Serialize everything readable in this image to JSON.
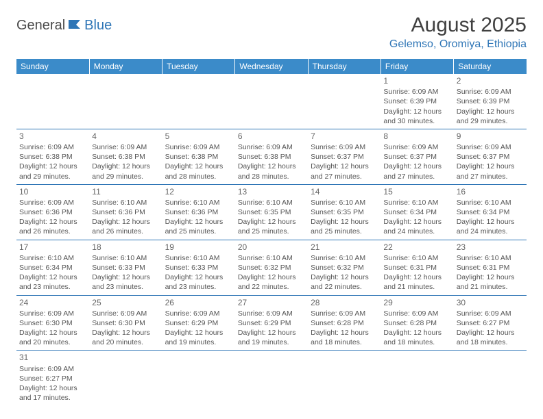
{
  "logo": {
    "text1": "General",
    "text2": "Blue"
  },
  "title": "August 2025",
  "location": "Gelemso, Oromiya, Ethiopia",
  "weekdays": [
    "Sunday",
    "Monday",
    "Tuesday",
    "Wednesday",
    "Thursday",
    "Friday",
    "Saturday"
  ],
  "colors": {
    "header_bg": "#3b8bc9",
    "header_text": "#ffffff",
    "accent": "#2e75b6",
    "body_text": "#555555",
    "title_text": "#404040"
  },
  "weeks": [
    [
      null,
      null,
      null,
      null,
      null,
      {
        "n": "1",
        "sr": "Sunrise: 6:09 AM",
        "ss": "Sunset: 6:39 PM",
        "d1": "Daylight: 12 hours",
        "d2": "and 30 minutes."
      },
      {
        "n": "2",
        "sr": "Sunrise: 6:09 AM",
        "ss": "Sunset: 6:39 PM",
        "d1": "Daylight: 12 hours",
        "d2": "and 29 minutes."
      }
    ],
    [
      {
        "n": "3",
        "sr": "Sunrise: 6:09 AM",
        "ss": "Sunset: 6:38 PM",
        "d1": "Daylight: 12 hours",
        "d2": "and 29 minutes."
      },
      {
        "n": "4",
        "sr": "Sunrise: 6:09 AM",
        "ss": "Sunset: 6:38 PM",
        "d1": "Daylight: 12 hours",
        "d2": "and 29 minutes."
      },
      {
        "n": "5",
        "sr": "Sunrise: 6:09 AM",
        "ss": "Sunset: 6:38 PM",
        "d1": "Daylight: 12 hours",
        "d2": "and 28 minutes."
      },
      {
        "n": "6",
        "sr": "Sunrise: 6:09 AM",
        "ss": "Sunset: 6:38 PM",
        "d1": "Daylight: 12 hours",
        "d2": "and 28 minutes."
      },
      {
        "n": "7",
        "sr": "Sunrise: 6:09 AM",
        "ss": "Sunset: 6:37 PM",
        "d1": "Daylight: 12 hours",
        "d2": "and 27 minutes."
      },
      {
        "n": "8",
        "sr": "Sunrise: 6:09 AM",
        "ss": "Sunset: 6:37 PM",
        "d1": "Daylight: 12 hours",
        "d2": "and 27 minutes."
      },
      {
        "n": "9",
        "sr": "Sunrise: 6:09 AM",
        "ss": "Sunset: 6:37 PM",
        "d1": "Daylight: 12 hours",
        "d2": "and 27 minutes."
      }
    ],
    [
      {
        "n": "10",
        "sr": "Sunrise: 6:09 AM",
        "ss": "Sunset: 6:36 PM",
        "d1": "Daylight: 12 hours",
        "d2": "and 26 minutes."
      },
      {
        "n": "11",
        "sr": "Sunrise: 6:10 AM",
        "ss": "Sunset: 6:36 PM",
        "d1": "Daylight: 12 hours",
        "d2": "and 26 minutes."
      },
      {
        "n": "12",
        "sr": "Sunrise: 6:10 AM",
        "ss": "Sunset: 6:36 PM",
        "d1": "Daylight: 12 hours",
        "d2": "and 25 minutes."
      },
      {
        "n": "13",
        "sr": "Sunrise: 6:10 AM",
        "ss": "Sunset: 6:35 PM",
        "d1": "Daylight: 12 hours",
        "d2": "and 25 minutes."
      },
      {
        "n": "14",
        "sr": "Sunrise: 6:10 AM",
        "ss": "Sunset: 6:35 PM",
        "d1": "Daylight: 12 hours",
        "d2": "and 25 minutes."
      },
      {
        "n": "15",
        "sr": "Sunrise: 6:10 AM",
        "ss": "Sunset: 6:34 PM",
        "d1": "Daylight: 12 hours",
        "d2": "and 24 minutes."
      },
      {
        "n": "16",
        "sr": "Sunrise: 6:10 AM",
        "ss": "Sunset: 6:34 PM",
        "d1": "Daylight: 12 hours",
        "d2": "and 24 minutes."
      }
    ],
    [
      {
        "n": "17",
        "sr": "Sunrise: 6:10 AM",
        "ss": "Sunset: 6:34 PM",
        "d1": "Daylight: 12 hours",
        "d2": "and 23 minutes."
      },
      {
        "n": "18",
        "sr": "Sunrise: 6:10 AM",
        "ss": "Sunset: 6:33 PM",
        "d1": "Daylight: 12 hours",
        "d2": "and 23 minutes."
      },
      {
        "n": "19",
        "sr": "Sunrise: 6:10 AM",
        "ss": "Sunset: 6:33 PM",
        "d1": "Daylight: 12 hours",
        "d2": "and 23 minutes."
      },
      {
        "n": "20",
        "sr": "Sunrise: 6:10 AM",
        "ss": "Sunset: 6:32 PM",
        "d1": "Daylight: 12 hours",
        "d2": "and 22 minutes."
      },
      {
        "n": "21",
        "sr": "Sunrise: 6:10 AM",
        "ss": "Sunset: 6:32 PM",
        "d1": "Daylight: 12 hours",
        "d2": "and 22 minutes."
      },
      {
        "n": "22",
        "sr": "Sunrise: 6:10 AM",
        "ss": "Sunset: 6:31 PM",
        "d1": "Daylight: 12 hours",
        "d2": "and 21 minutes."
      },
      {
        "n": "23",
        "sr": "Sunrise: 6:10 AM",
        "ss": "Sunset: 6:31 PM",
        "d1": "Daylight: 12 hours",
        "d2": "and 21 minutes."
      }
    ],
    [
      {
        "n": "24",
        "sr": "Sunrise: 6:09 AM",
        "ss": "Sunset: 6:30 PM",
        "d1": "Daylight: 12 hours",
        "d2": "and 20 minutes."
      },
      {
        "n": "25",
        "sr": "Sunrise: 6:09 AM",
        "ss": "Sunset: 6:30 PM",
        "d1": "Daylight: 12 hours",
        "d2": "and 20 minutes."
      },
      {
        "n": "26",
        "sr": "Sunrise: 6:09 AM",
        "ss": "Sunset: 6:29 PM",
        "d1": "Daylight: 12 hours",
        "d2": "and 19 minutes."
      },
      {
        "n": "27",
        "sr": "Sunrise: 6:09 AM",
        "ss": "Sunset: 6:29 PM",
        "d1": "Daylight: 12 hours",
        "d2": "and 19 minutes."
      },
      {
        "n": "28",
        "sr": "Sunrise: 6:09 AM",
        "ss": "Sunset: 6:28 PM",
        "d1": "Daylight: 12 hours",
        "d2": "and 18 minutes."
      },
      {
        "n": "29",
        "sr": "Sunrise: 6:09 AM",
        "ss": "Sunset: 6:28 PM",
        "d1": "Daylight: 12 hours",
        "d2": "and 18 minutes."
      },
      {
        "n": "30",
        "sr": "Sunrise: 6:09 AM",
        "ss": "Sunset: 6:27 PM",
        "d1": "Daylight: 12 hours",
        "d2": "and 18 minutes."
      }
    ],
    [
      {
        "n": "31",
        "sr": "Sunrise: 6:09 AM",
        "ss": "Sunset: 6:27 PM",
        "d1": "Daylight: 12 hours",
        "d2": "and 17 minutes."
      },
      null,
      null,
      null,
      null,
      null,
      null
    ]
  ]
}
